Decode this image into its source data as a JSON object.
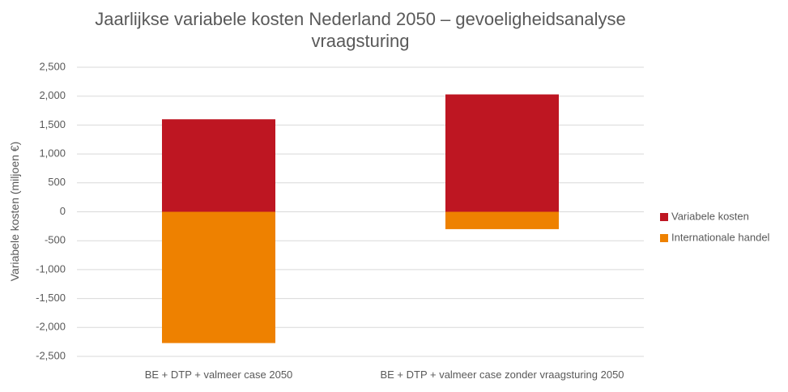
{
  "chart_data": {
    "type": "bar",
    "stacked": true,
    "title": "Jaarlijkse variabele kosten Nederland 2050 – gevoeligheidsanalyse vraagsturing",
    "y_label": "Variabele kosten (miljoen €)",
    "categories": [
      "BE + DTP + valmeer case 2050",
      "BE + DTP + valmeer case zonder vraagsturing 2050"
    ],
    "series": [
      {
        "name": "Variabele kosten",
        "color": "#be1622",
        "values": [
          1600,
          2030
        ]
      },
      {
        "name": "Internationale handel",
        "color": "#ee8100",
        "values": [
          -2270,
          -300
        ]
      }
    ],
    "ylim": [
      -2500,
      2500
    ],
    "yticks": [
      {
        "value": -2500,
        "label": "-2,500"
      },
      {
        "value": -2000,
        "label": "-2,000"
      },
      {
        "value": -1500,
        "label": "-1,500"
      },
      {
        "value": -1000,
        "label": "-1,000"
      },
      -500,
      0,
      500,
      {
        "value": 1000,
        "label": "1,000"
      },
      {
        "value": 1500,
        "label": "1,500"
      },
      {
        "value": 2000,
        "label": "2,000"
      },
      {
        "value": 2500,
        "label": "2,500"
      }
    ],
    "grid": true,
    "legend": "right"
  }
}
